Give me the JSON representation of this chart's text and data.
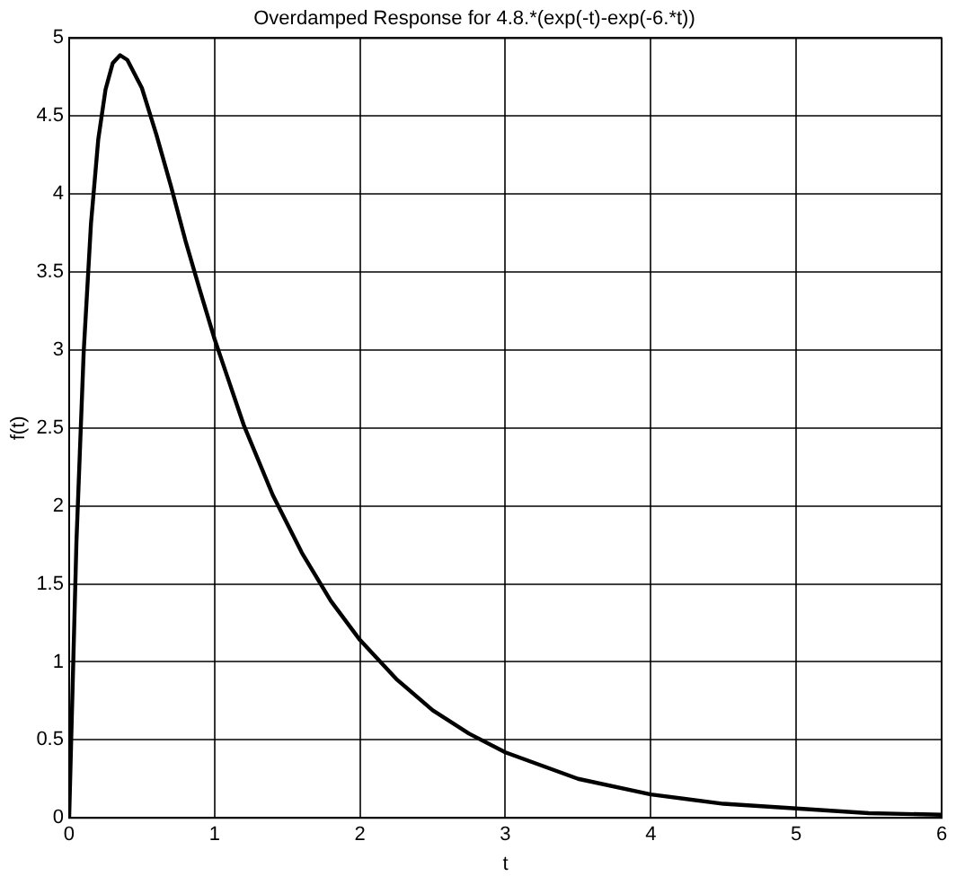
{
  "chart_data": {
    "type": "line",
    "title": "Overdamped Response for 4.8.*(exp(-t)-exp(-6.*t))",
    "xlabel": "t",
    "ylabel": "f(t)",
    "x": [
      0,
      0.05,
      0.1,
      0.15,
      0.2,
      0.25,
      0.3,
      0.35,
      0.4,
      0.5,
      0.6,
      0.7,
      0.8,
      0.9,
      1,
      1.2,
      1.4,
      1.6,
      1.8,
      2,
      2.25,
      2.5,
      2.75,
      3,
      3.5,
      4,
      4.5,
      5,
      5.5,
      6
    ],
    "series": [
      {
        "color": "#000000",
        "values": [
          0,
          1.77,
          2.99,
          3.81,
          4.35,
          4.67,
          4.84,
          4.89,
          4.86,
          4.68,
          4.38,
          4.05,
          3.7,
          3.38,
          3.07,
          2.52,
          2.07,
          1.7,
          1.39,
          1.14,
          0.89,
          0.69,
          0.54,
          0.42,
          0.25,
          0.15,
          0.09,
          0.06,
          0.03,
          0.02
        ]
      }
    ],
    "xlim": [
      0,
      6
    ],
    "xticks": [
      0,
      1,
      2,
      3,
      4,
      5,
      6
    ],
    "ylim": [
      0,
      5
    ],
    "yticks": [
      0,
      0.5,
      1,
      1.5,
      2,
      2.5,
      3,
      3.5,
      4,
      4.5,
      5
    ],
    "grid": true,
    "marker": "none",
    "line_style": "solid",
    "legend": false
  }
}
